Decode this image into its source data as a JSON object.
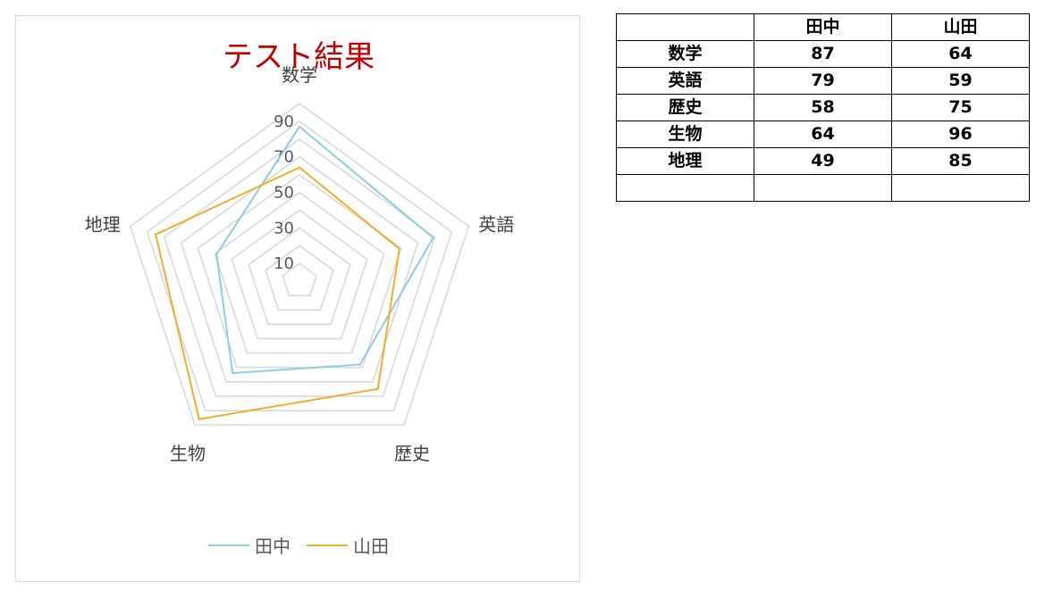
{
  "chart_data": {
    "type": "radar",
    "title": "テスト結果",
    "categories": [
      "数学",
      "英語",
      "歴史",
      "生物",
      "地理"
    ],
    "series": [
      {
        "name": "田中",
        "values": [
          87,
          79,
          58,
          64,
          49
        ],
        "color": "#8fcde3"
      },
      {
        "name": "山田",
        "values": [
          64,
          59,
          75,
          96,
          85
        ],
        "color": "#f5ad2a"
      }
    ],
    "ticks": [
      "10",
      "30",
      "50",
      "70",
      "90"
    ],
    "rmin": 0,
    "rmax": 100,
    "grid_levels": [
      10,
      20,
      30,
      40,
      50,
      60,
      70,
      80,
      90,
      100
    ],
    "grid": true,
    "legend": "bottom",
    "title_color": "#c00000",
    "grid_color": "#d9d9d9"
  },
  "table": {
    "header": [
      "",
      "田中",
      "山田"
    ],
    "rows": [
      [
        "数学",
        "87",
        "64"
      ],
      [
        "英語",
        "79",
        "59"
      ],
      [
        "歴史",
        "58",
        "75"
      ],
      [
        "生物",
        "64",
        "96"
      ],
      [
        "地理",
        "49",
        "85"
      ],
      [
        "",
        "",
        ""
      ]
    ]
  }
}
